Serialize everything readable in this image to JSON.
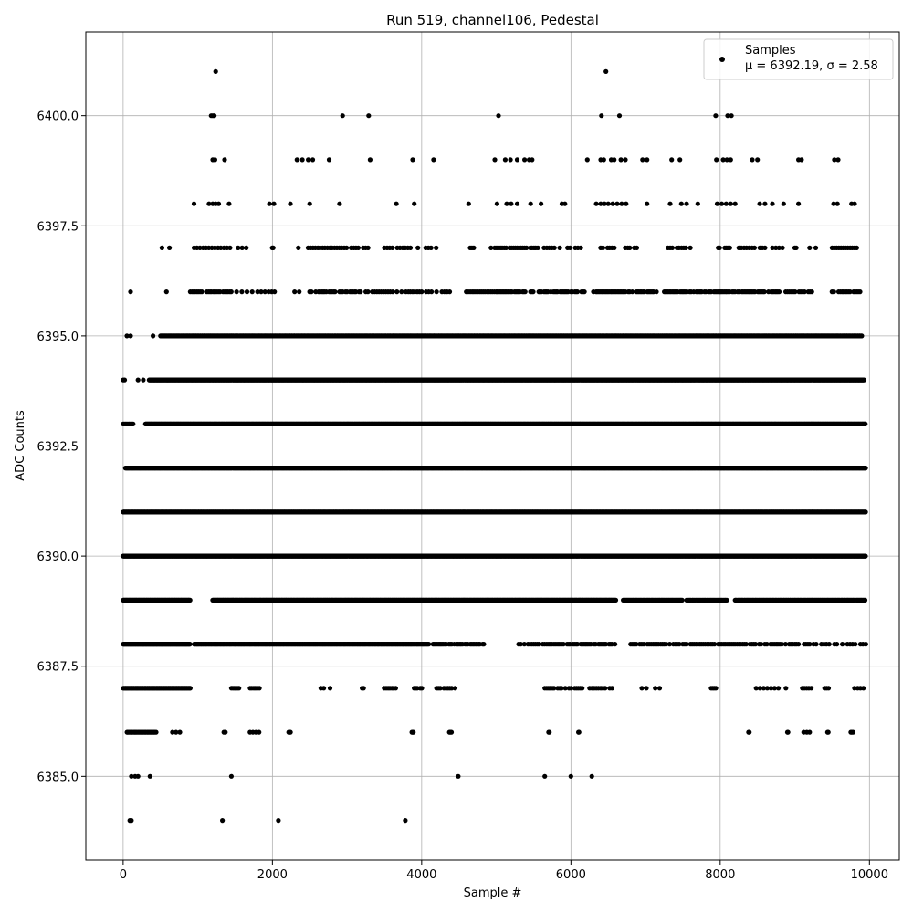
{
  "chart_data": {
    "type": "scatter",
    "title": "Run 519, channel106, Pedestal",
    "xlabel": "Sample #",
    "ylabel": "ADC Counts",
    "xlim": [
      -500,
      10400
    ],
    "ylim": [
      6383.1,
      6401.9
    ],
    "xticks": [
      0,
      2000,
      4000,
      6000,
      8000,
      10000
    ],
    "xtick_labels": [
      "0",
      "2000",
      "4000",
      "6000",
      "8000",
      "10000"
    ],
    "yticks": [
      6385.0,
      6387.5,
      6390.0,
      6392.5,
      6395.0,
      6397.5,
      6400.0
    ],
    "ytick_labels": [
      "6385.0",
      "6387.5",
      "6390.0",
      "6392.5",
      "6395.0",
      "6397.5",
      "6400.0"
    ],
    "grid": true,
    "legend_position": "top-right",
    "marker_color": "#000000",
    "grid_color": "#b0b0b0",
    "series": [
      {
        "name": "Samples",
        "legend_line2": "μ = 6392.19, σ = 2.58",
        "levels": [
          {
            "y": 6401,
            "x": [
              1240,
              6470
            ]
          },
          {
            "y": 6400,
            "x": [
              1180,
              1200,
              1220,
              2940,
              3290,
              5030,
              6410,
              6650,
              7940,
              8100,
              8150
            ]
          },
          {
            "y": 6399,
            "x": [
              1200,
              1230,
              1360,
              2330,
              2400,
              2480,
              2540,
              2760,
              3310,
              3880,
              4160,
              4980,
              5120,
              5190,
              5280,
              5380,
              5440,
              5480,
              6220,
              6400,
              6440,
              6540,
              6580,
              6670,
              6730,
              6960,
              7020,
              7350,
              7460,
              7950,
              8040,
              8090,
              8140,
              8430,
              8500,
              9050,
              9090,
              9530,
              9580
            ]
          },
          {
            "y": 6398,
            "x": [
              950,
              1150,
              1200,
              1240,
              1280,
              1420,
              1960,
              2020,
              2240,
              2500,
              2900,
              3660,
              3900,
              4630,
              5010,
              5140,
              5200,
              5280,
              5460,
              5600,
              5880,
              5920,
              6340,
              6400,
              6450,
              6500,
              6560,
              6620,
              6680,
              6740,
              7020,
              7330,
              7480,
              7550,
              7700,
              7960,
              8020,
              8080,
              8140,
              8200,
              8530,
              8600,
              8700,
              8850,
              9050,
              9520,
              9570,
              9760,
              9800
            ]
          },
          {
            "y": 6397,
            "x": [
              520,
              620
            ],
            "runs": [
              [
                950,
                1450,
                40
              ],
              [
                1540,
                1650,
                55
              ],
              [
                2000,
                2010,
                10
              ],
              [
                2240,
                2350,
                55
              ],
              [
                2480,
                3300,
                32
              ],
              [
                3500,
                3850,
                35
              ],
              [
                3950,
                4220,
                35
              ],
              [
                4650,
                4700,
                25
              ],
              [
                4930,
                5560,
                25
              ],
              [
                5640,
                6150,
                35
              ],
              [
                6400,
                6900,
                30
              ],
              [
                7300,
                7600,
                30
              ],
              [
                7950,
                8150,
                22
              ],
              [
                8250,
                8600,
                35
              ],
              [
                8700,
                8850,
                45
              ],
              [
                9000,
                9040,
                20
              ],
              [
                9200,
                9280,
                40
              ],
              [
                9500,
                9850,
                30
              ]
            ]
          },
          {
            "y": 6396,
            "x": [
              100,
              580
            ],
            "runs": [
              [
                900,
                1450,
                22
              ],
              [
                1520,
                1750,
                70
              ],
              [
                1800,
                1900,
                50
              ],
              [
                1950,
                2100,
                40
              ],
              [
                2300,
                2400,
                60
              ],
              [
                2500,
                3200,
                20
              ],
              [
                3250,
                4000,
                30
              ],
              [
                4060,
                4400,
                35
              ],
              [
                4600,
                5000,
                25
              ],
              [
                5010,
                6200,
                18
              ],
              [
                6300,
                7150,
                18
              ],
              [
                7250,
                8000,
                18
              ],
              [
                8000,
                8800,
                18
              ],
              [
                8880,
                9300,
                25
              ],
              [
                9500,
                9900,
                22
              ]
            ]
          },
          {
            "y": 6395,
            "x": [
              50,
              100,
              400
            ],
            "runs": [
              [
                500,
                9900,
                12
              ]
            ]
          },
          {
            "y": 6394,
            "x": [
              0,
              20,
              200,
              270
            ],
            "runs": [
              [
                350,
                9930,
                8
              ]
            ]
          },
          {
            "y": 6393,
            "runs": [
              [
                0,
                140,
                15
              ],
              [
                300,
                9950,
                7
              ]
            ]
          },
          {
            "y": 6392,
            "runs": [
              [
                30,
                9950,
                7
              ]
            ]
          },
          {
            "y": 6391,
            "runs": [
              [
                0,
                9950,
                7
              ]
            ]
          },
          {
            "y": 6390,
            "runs": [
              [
                0,
                9950,
                7
              ]
            ]
          },
          {
            "y": 6389,
            "runs": [
              [
                0,
                900,
                8
              ],
              [
                1200,
                6600,
                8
              ],
              [
                6700,
                7500,
                12
              ],
              [
                7550,
                8100,
                15
              ],
              [
                8200,
                9800,
                12
              ],
              [
                9820,
                9950,
                12
              ]
            ]
          },
          {
            "y": 6388,
            "runs": [
              [
                0,
                900,
                8
              ],
              [
                950,
                4100,
                12
              ],
              [
                4150,
                4850,
                18
              ],
              [
                5300,
                5900,
                25
              ],
              [
                5950,
                6600,
                20
              ],
              [
                6800,
                7450,
                25
              ],
              [
                7500,
                9200,
                25
              ],
              [
                9250,
                9950,
                35
              ]
            ]
          },
          {
            "y": 6387,
            "runs": [
              [
                0,
                900,
                10
              ],
              [
                1450,
                1550,
                20
              ],
              [
                1700,
                1850,
                25
              ],
              [
                2650,
                2800,
                40
              ],
              [
                3200,
                3250,
                20
              ],
              [
                3500,
                3650,
                25
              ],
              [
                3900,
                4000,
                20
              ],
              [
                4200,
                4450,
                25
              ],
              [
                5650,
                6150,
                25
              ],
              [
                6250,
                6550,
                30
              ],
              [
                6950,
                7300,
                60
              ],
              [
                7880,
                7940,
                20
              ],
              [
                8380,
                8900,
                50
              ],
              [
                9100,
                9240,
                30
              ],
              [
                9400,
                9450,
                25
              ],
              [
                9800,
                9920,
                40
              ]
            ]
          },
          {
            "y": 6386,
            "runs": [
              [
                50,
                450,
                15
              ],
              [
                660,
                760,
                50
              ],
              [
                1350,
                1380,
                20
              ],
              [
                1700,
                1820,
                40
              ],
              [
                2220,
                2240,
                10
              ],
              [
                3870,
                3890,
                10
              ],
              [
                4370,
                4400,
                15
              ],
              [
                5700,
                5710,
                10
              ],
              [
                6100,
                6110,
                10
              ],
              [
                8380,
                8390,
                10
              ],
              [
                8900,
                8910,
                10
              ],
              [
                9120,
                9200,
                40
              ],
              [
                9440,
                9450,
                10
              ],
              [
                9750,
                9780,
                15
              ]
            ]
          },
          {
            "y": 6385,
            "x": [
              110,
              160,
              200,
              360,
              1450,
              4490,
              5650,
              6000,
              6280
            ]
          },
          {
            "y": 6384,
            "x": [
              90,
              110,
              1330,
              2080,
              3780
            ]
          }
        ]
      }
    ]
  }
}
